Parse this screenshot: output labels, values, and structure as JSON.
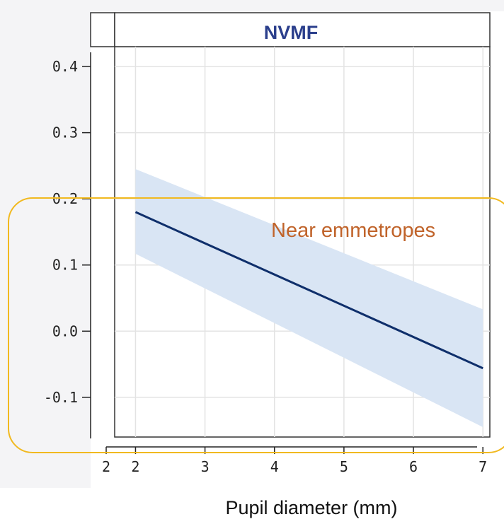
{
  "chart_data": {
    "type": "line",
    "panel_title": "NVMF",
    "annotation": "Near emmetropes",
    "xlabel": "Pupil diameter (mm)",
    "ylabel": "",
    "x_ticks": [
      2,
      3,
      4,
      5,
      6,
      7
    ],
    "y_ticks": [
      0.4,
      0.3,
      0.2,
      0.1,
      0.0,
      -0.1
    ],
    "y_tick_labels": [
      "0.4",
      "0.3",
      "0.2",
      "0.1",
      "0.0",
      "-0.1"
    ],
    "x_tick_labels": [
      "2",
      "3",
      "4",
      "5",
      "6",
      "7"
    ],
    "clipped_x_label": "2",
    "xlim": [
      1.7,
      7.1
    ],
    "ylim": [
      -0.16,
      0.43
    ],
    "grid": true,
    "series": [
      {
        "x": [
          2,
          7
        ],
        "y": [
          0.18,
          -0.056
        ],
        "ci_lower": [
          0.117,
          -0.145
        ],
        "ci_upper": [
          0.245,
          0.033
        ]
      }
    ],
    "colors": {
      "line": "#0f2f6b",
      "band": "#d9e5f4",
      "title": "#2b3f8c",
      "annotation": "#c0632a",
      "highlight_box": "#f1b91f",
      "grid": "#e3e3e3"
    }
  }
}
